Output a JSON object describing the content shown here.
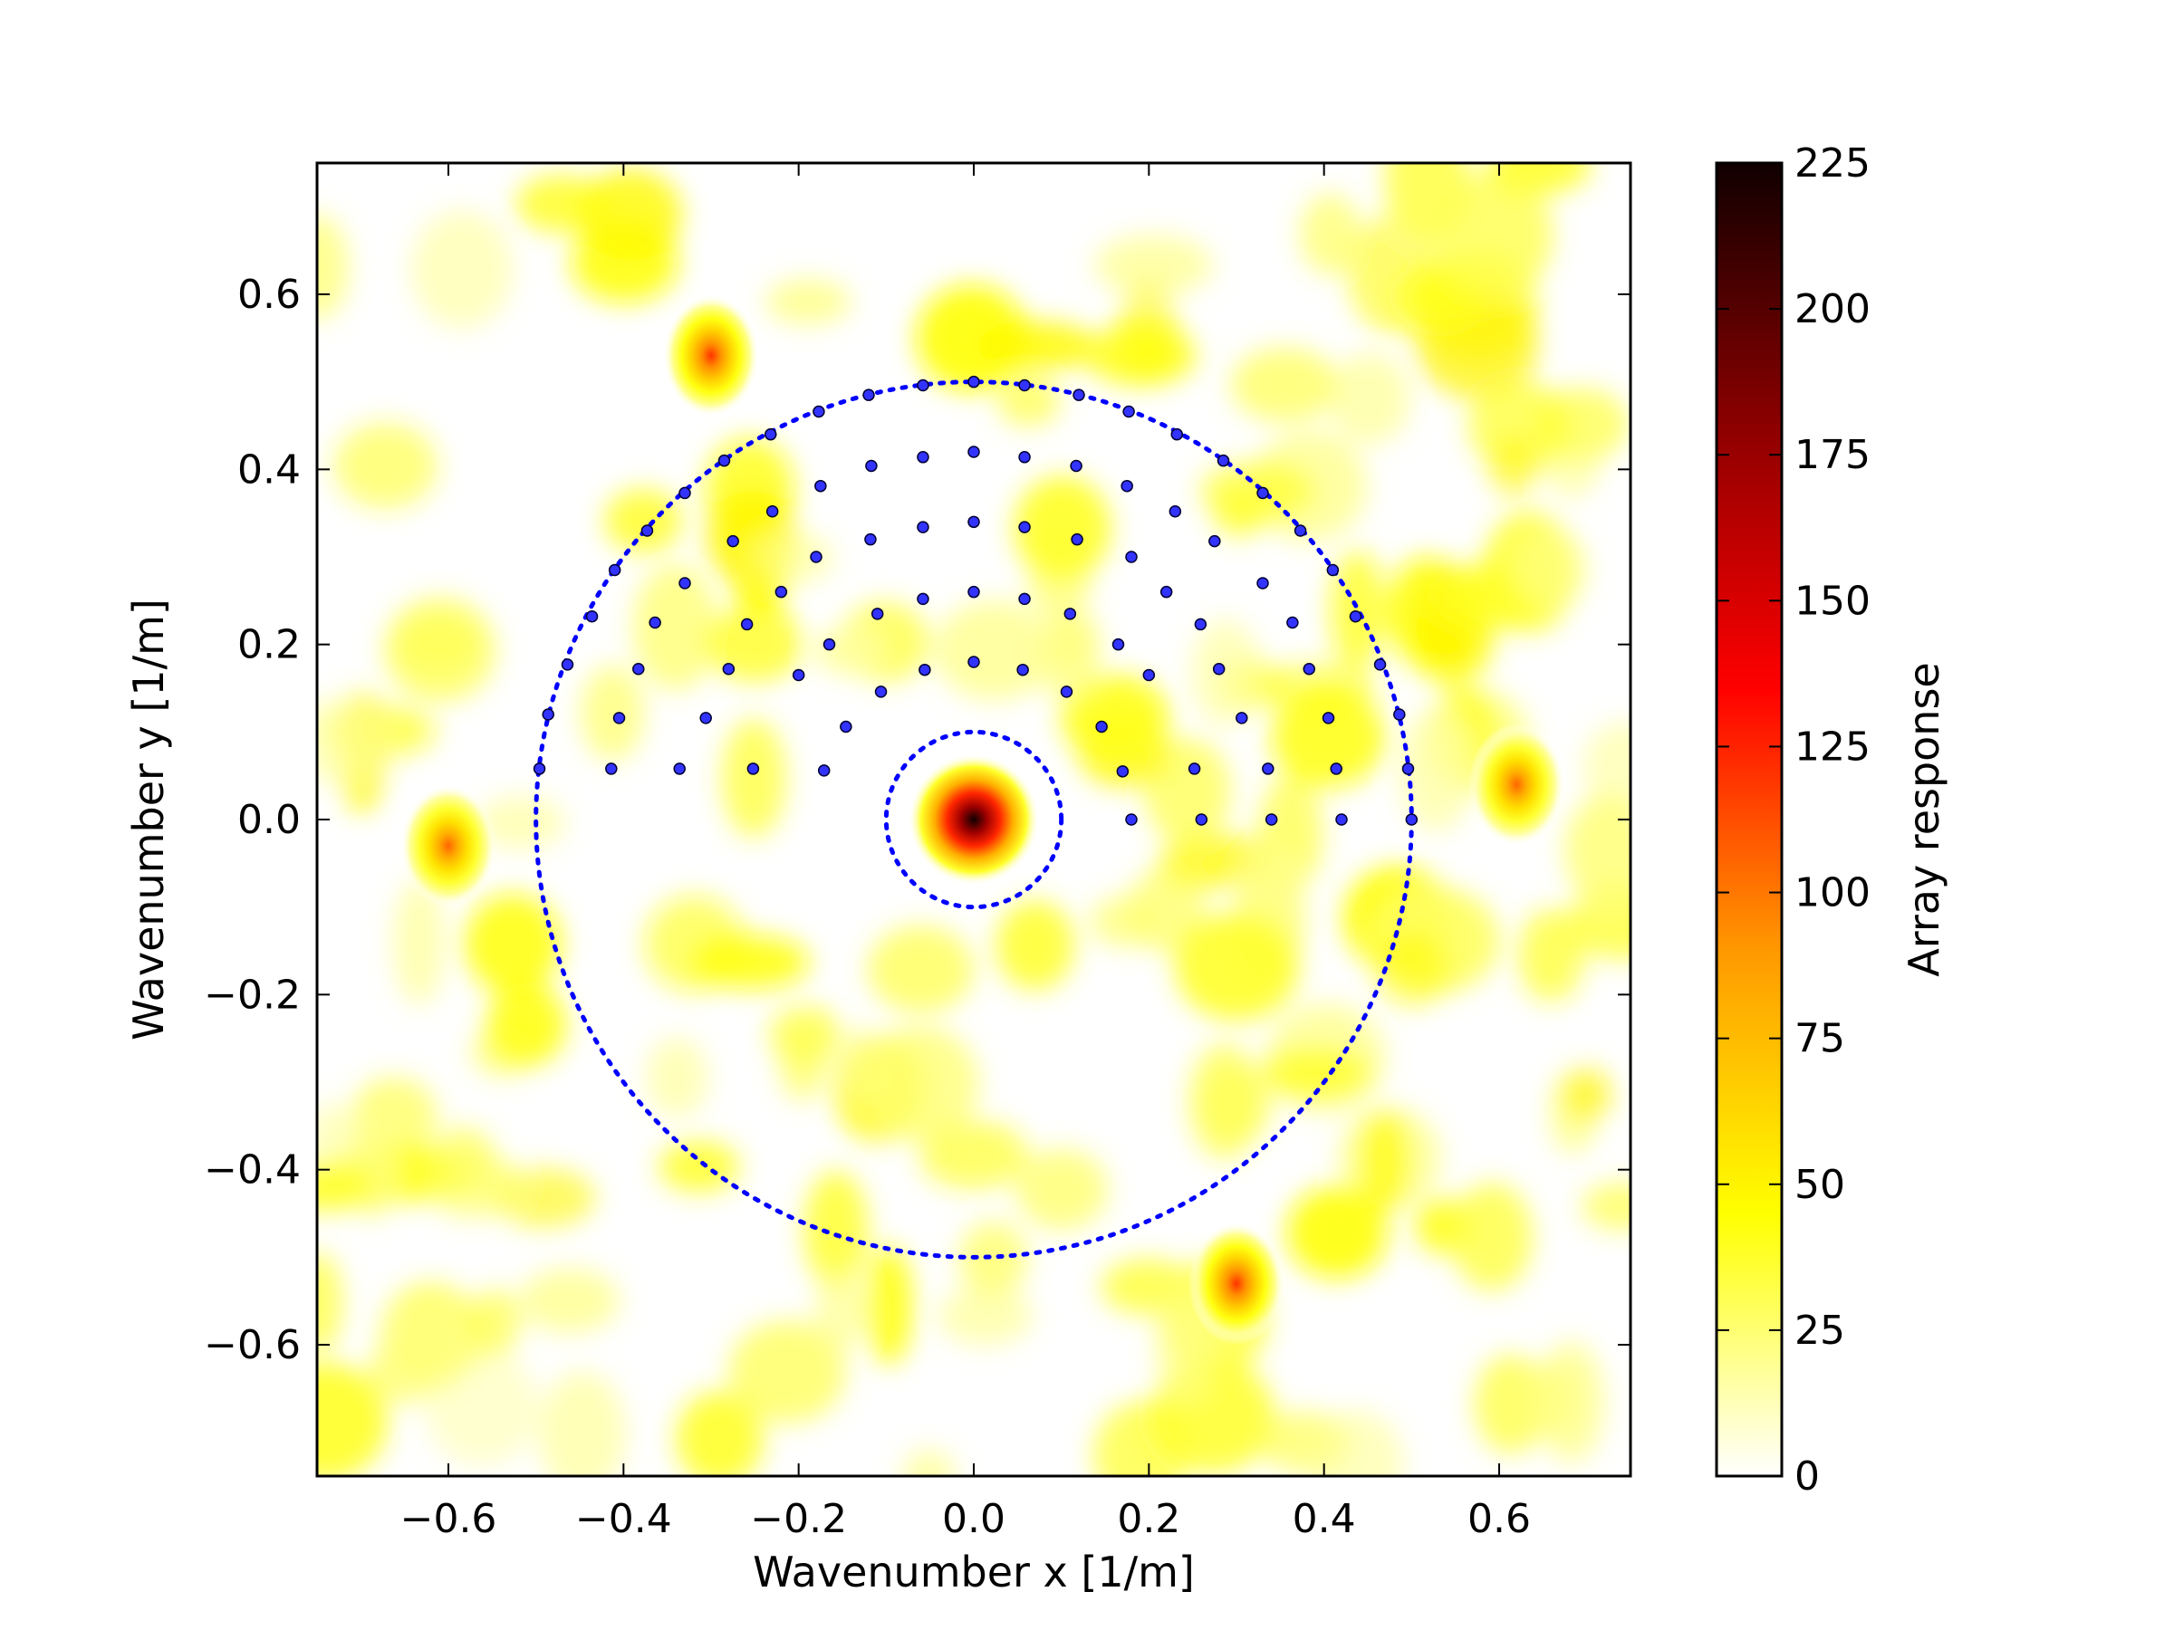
{
  "chart_data": {
    "type": "heatmap",
    "title": "",
    "xlabel": "Wavenumber x [1/m]",
    "ylabel": "Wavenumber y [1/m]",
    "xlim": [
      -0.75,
      0.75
    ],
    "ylim": [
      -0.75,
      0.75
    ],
    "xticks": [
      -0.6,
      -0.4,
      -0.2,
      0.0,
      0.2,
      0.4,
      0.6
    ],
    "yticks": [
      -0.6,
      -0.4,
      -0.2,
      0.0,
      0.2,
      0.4,
      0.6
    ],
    "xtick_labels": [
      "−0.6",
      "−0.4",
      "−0.2",
      "0.0",
      "0.2",
      "0.4",
      "0.6"
    ],
    "ytick_labels": [
      "−0.6",
      "−0.4",
      "−0.2",
      "0.0",
      "0.2",
      "0.4",
      "0.6"
    ],
    "grid": false,
    "colormap": "hot_r",
    "colorbar": {
      "label": "Array response",
      "range": [
        0,
        225
      ],
      "ticks": [
        0,
        25,
        50,
        75,
        100,
        125,
        150,
        175,
        200,
        225
      ],
      "colors": [
        "#ffffff",
        "#ffff00",
        "#ff9900",
        "#ff0000",
        "#8c0000",
        "#100000"
      ]
    },
    "peaks": [
      {
        "x": 0.0,
        "y": 0.0,
        "value": 225
      },
      {
        "x": -0.3,
        "y": 0.53,
        "value": 120
      },
      {
        "x": 0.3,
        "y": -0.53,
        "value": 120
      },
      {
        "x": -0.6,
        "y": -0.03,
        "value": 105
      },
      {
        "x": 0.62,
        "y": 0.04,
        "value": 105
      }
    ],
    "circles": [
      {
        "radius": 0.5,
        "style": "dotted",
        "color": "#0000ff"
      },
      {
        "radius": 0.1,
        "style": "dotted",
        "color": "#0000ff"
      }
    ],
    "scatter": {
      "color": "#3333ff",
      "rings": [
        {
          "radius": 0.18,
          "points": [
            [
              0.18,
              0.0
            ],
            [
              0.17,
              0.055
            ],
            [
              0.146,
              0.106
            ],
            [
              0.106,
              0.146
            ],
            [
              0.056,
              0.171
            ],
            [
              0.0,
              0.18
            ],
            [
              -0.056,
              0.171
            ],
            [
              -0.106,
              0.146
            ],
            [
              -0.146,
              0.106
            ],
            [
              -0.171,
              0.056
            ]
          ]
        },
        {
          "radius": 0.26,
          "points": [
            [
              0.26,
              0.0
            ],
            [
              0.252,
              0.058
            ],
            [
              0.2,
              0.165
            ],
            [
              0.165,
              0.2
            ],
            [
              0.11,
              0.235
            ],
            [
              0.058,
              0.252
            ],
            [
              0.0,
              0.26
            ],
            [
              -0.058,
              0.252
            ],
            [
              -0.11,
              0.235
            ],
            [
              -0.165,
              0.2
            ],
            [
              -0.2,
              0.165
            ],
            [
              -0.252,
              0.058
            ]
          ]
        },
        {
          "radius": 0.34,
          "points": [
            [
              0.34,
              0.0
            ],
            [
              0.336,
              0.058
            ],
            [
              0.306,
              0.116
            ],
            [
              0.28,
              0.172
            ],
            [
              0.259,
              0.223
            ],
            [
              0.22,
              0.26
            ],
            [
              0.18,
              0.3
            ],
            [
              0.118,
              0.32
            ],
            [
              0.058,
              0.334
            ],
            [
              0.0,
              0.34
            ],
            [
              -0.058,
              0.334
            ],
            [
              -0.118,
              0.32
            ],
            [
              -0.18,
              0.3
            ],
            [
              -0.22,
              0.26
            ],
            [
              -0.259,
              0.223
            ],
            [
              -0.28,
              0.172
            ],
            [
              -0.306,
              0.116
            ],
            [
              -0.336,
              0.058
            ]
          ]
        },
        {
          "radius": 0.42,
          "points": [
            [
              0.42,
              0.0
            ],
            [
              0.414,
              0.058
            ],
            [
              0.405,
              0.116
            ],
            [
              0.383,
              0.172
            ],
            [
              0.364,
              0.225
            ],
            [
              0.33,
              0.27
            ],
            [
              0.275,
              0.318
            ],
            [
              0.23,
              0.352
            ],
            [
              0.175,
              0.381
            ],
            [
              0.117,
              0.404
            ],
            [
              0.058,
              0.414
            ],
            [
              0.0,
              0.42
            ],
            [
              -0.058,
              0.414
            ],
            [
              -0.117,
              0.404
            ],
            [
              -0.175,
              0.381
            ],
            [
              -0.23,
              0.352
            ],
            [
              -0.275,
              0.318
            ],
            [
              -0.33,
              0.27
            ],
            [
              -0.364,
              0.225
            ],
            [
              -0.383,
              0.172
            ],
            [
              -0.405,
              0.116
            ],
            [
              -0.414,
              0.058
            ]
          ]
        },
        {
          "radius": 0.5,
          "points": [
            [
              0.5,
              0.0
            ],
            [
              0.496,
              0.058
            ],
            [
              0.486,
              0.12
            ],
            [
              0.464,
              0.177
            ],
            [
              0.436,
              0.232
            ],
            [
              0.41,
              0.285
            ],
            [
              0.373,
              0.33
            ],
            [
              0.33,
              0.373
            ],
            [
              0.285,
              0.41
            ],
            [
              0.232,
              0.44
            ],
            [
              0.177,
              0.466
            ],
            [
              0.12,
              0.485
            ],
            [
              0.058,
              0.496
            ],
            [
              0.0,
              0.5
            ],
            [
              -0.058,
              0.496
            ],
            [
              -0.12,
              0.485
            ],
            [
              -0.177,
              0.466
            ],
            [
              -0.232,
              0.44
            ],
            [
              -0.285,
              0.41
            ],
            [
              -0.33,
              0.373
            ],
            [
              -0.373,
              0.33
            ],
            [
              -0.41,
              0.285
            ],
            [
              -0.436,
              0.232
            ],
            [
              -0.464,
              0.177
            ],
            [
              -0.486,
              0.12
            ],
            [
              -0.496,
              0.058
            ]
          ]
        }
      ]
    }
  }
}
